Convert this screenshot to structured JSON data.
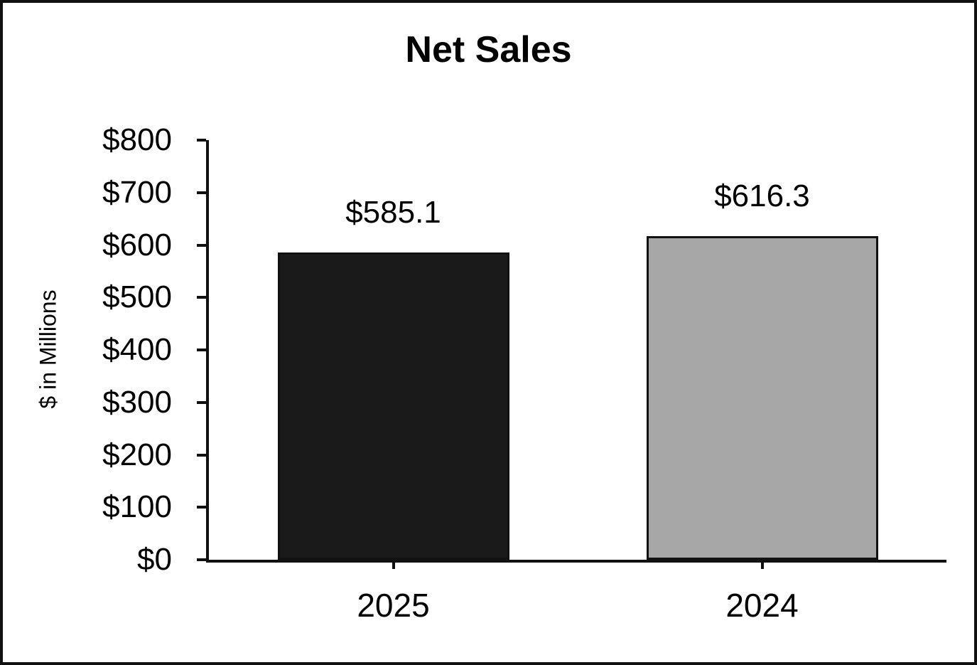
{
  "chart_data": {
    "type": "bar",
    "title": "Net Sales",
    "ylabel": "$ in Millions",
    "xlabel": "",
    "categories": [
      "2025",
      "2024"
    ],
    "values": [
      585.1,
      616.3
    ],
    "value_labels": [
      "$585.1",
      "$616.3"
    ],
    "bar_colors": [
      "#1a1a1a",
      "#a7a7a7"
    ],
    "bar_border_color": "#111111",
    "axis_color": "#111111",
    "text_color": "#000000",
    "background_color": "#ffffff",
    "ylim": [
      0,
      800
    ],
    "ytick_step": 100,
    "ytick_labels": [
      "$0",
      "$100",
      "$200",
      "$300",
      "$400",
      "$500",
      "$600",
      "$700",
      "$800"
    ],
    "grid": false,
    "legend": "none"
  }
}
